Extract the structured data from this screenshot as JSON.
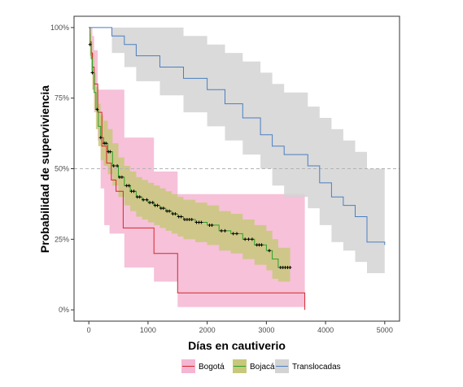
{
  "chart_data": {
    "type": "line",
    "title": "",
    "xlabel": "Días en cautiverio",
    "ylabel": "Probabilidad de superviviencia",
    "xlim": [
      -250,
      5250
    ],
    "ylim": [
      -0.04,
      1.04
    ],
    "x_ticks": [
      0,
      1000,
      2000,
      3000,
      4000,
      5000
    ],
    "x_tick_labels": [
      "0",
      "1000",
      "2000",
      "3000",
      "4000",
      "5000"
    ],
    "y_ticks": [
      0,
      0.25,
      0.5,
      0.75,
      1.0
    ],
    "y_tick_labels": [
      "0%",
      "25%",
      "50%",
      "75%",
      "100%"
    ],
    "median_line": 0.5,
    "legend_position": "bottom",
    "series": [
      {
        "name": "Bogotá",
        "color": "#d62728",
        "fill": "#f4b6d2",
        "steps": [
          [
            0,
            1.0
          ],
          [
            20,
            0.95
          ],
          [
            40,
            0.91
          ],
          [
            60,
            0.86
          ],
          [
            90,
            0.8
          ],
          [
            150,
            0.7
          ],
          [
            220,
            0.58
          ],
          [
            300,
            0.52
          ],
          [
            380,
            0.46
          ],
          [
            460,
            0.42
          ],
          [
            580,
            0.29
          ],
          [
            1100,
            0.29
          ],
          [
            1100,
            0.2
          ],
          [
            1500,
            0.2
          ],
          [
            1500,
            0.06
          ],
          [
            3650,
            0.06
          ],
          [
            3650,
            0.0
          ]
        ],
        "lower": [
          [
            0,
            1.0
          ],
          [
            20,
            0.9
          ],
          [
            40,
            0.85
          ],
          [
            60,
            0.78
          ],
          [
            90,
            0.7
          ],
          [
            150,
            0.6
          ],
          [
            200,
            0.43
          ],
          [
            260,
            0.3
          ],
          [
            350,
            0.27
          ],
          [
            600,
            0.15
          ],
          [
            1100,
            0.1
          ],
          [
            1500,
            0.01
          ],
          [
            3650,
            0.01
          ]
        ],
        "upper": [
          [
            0,
            1.0
          ],
          [
            20,
            1.0
          ],
          [
            40,
            1.0
          ],
          [
            60,
            0.97
          ],
          [
            90,
            0.92
          ],
          [
            150,
            0.78
          ],
          [
            600,
            0.61
          ],
          [
            1100,
            0.49
          ],
          [
            1500,
            0.41
          ],
          [
            3650,
            0.41
          ]
        ]
      },
      {
        "name": "Bojacá",
        "color": "#2ca02c",
        "fill": "#c8c87a",
        "steps": [
          [
            0,
            1.0
          ],
          [
            20,
            0.94
          ],
          [
            40,
            0.89
          ],
          [
            60,
            0.84
          ],
          [
            90,
            0.77
          ],
          [
            120,
            0.71
          ],
          [
            160,
            0.65
          ],
          [
            200,
            0.61
          ],
          [
            250,
            0.59
          ],
          [
            320,
            0.56
          ],
          [
            400,
            0.51
          ],
          [
            500,
            0.47
          ],
          [
            600,
            0.44
          ],
          [
            700,
            0.42
          ],
          [
            800,
            0.4
          ],
          [
            900,
            0.39
          ],
          [
            1000,
            0.38
          ],
          [
            1100,
            0.37
          ],
          [
            1200,
            0.36
          ],
          [
            1300,
            0.35
          ],
          [
            1400,
            0.34
          ],
          [
            1500,
            0.33
          ],
          [
            1600,
            0.32
          ],
          [
            1800,
            0.31
          ],
          [
            2000,
            0.3
          ],
          [
            2200,
            0.28
          ],
          [
            2400,
            0.27
          ],
          [
            2600,
            0.25
          ],
          [
            2800,
            0.23
          ],
          [
            3000,
            0.21
          ],
          [
            3100,
            0.18
          ],
          [
            3200,
            0.15
          ],
          [
            3400,
            0.15
          ]
        ],
        "lower": [
          [
            0,
            1.0
          ],
          [
            20,
            0.9
          ],
          [
            40,
            0.84
          ],
          [
            60,
            0.78
          ],
          [
            90,
            0.71
          ],
          [
            120,
            0.64
          ],
          [
            160,
            0.58
          ],
          [
            200,
            0.53
          ],
          [
            250,
            0.51
          ],
          [
            320,
            0.48
          ],
          [
            400,
            0.44
          ],
          [
            500,
            0.4
          ],
          [
            600,
            0.37
          ],
          [
            700,
            0.35
          ],
          [
            800,
            0.33
          ],
          [
            900,
            0.32
          ],
          [
            1000,
            0.31
          ],
          [
            1100,
            0.3
          ],
          [
            1200,
            0.29
          ],
          [
            1300,
            0.28
          ],
          [
            1400,
            0.27
          ],
          [
            1500,
            0.26
          ],
          [
            1600,
            0.25
          ],
          [
            1800,
            0.24
          ],
          [
            2000,
            0.23
          ],
          [
            2200,
            0.21
          ],
          [
            2400,
            0.2
          ],
          [
            2600,
            0.18
          ],
          [
            2800,
            0.16
          ],
          [
            3000,
            0.14
          ],
          [
            3100,
            0.11
          ],
          [
            3200,
            0.1
          ],
          [
            3400,
            0.1
          ]
        ],
        "upper": [
          [
            0,
            1.0
          ],
          [
            20,
            0.98
          ],
          [
            40,
            0.95
          ],
          [
            60,
            0.91
          ],
          [
            90,
            0.84
          ],
          [
            120,
            0.79
          ],
          [
            160,
            0.73
          ],
          [
            200,
            0.69
          ],
          [
            250,
            0.67
          ],
          [
            320,
            0.64
          ],
          [
            400,
            0.59
          ],
          [
            500,
            0.54
          ],
          [
            600,
            0.51
          ],
          [
            700,
            0.49
          ],
          [
            800,
            0.47
          ],
          [
            900,
            0.46
          ],
          [
            1000,
            0.45
          ],
          [
            1100,
            0.44
          ],
          [
            1200,
            0.43
          ],
          [
            1300,
            0.42
          ],
          [
            1400,
            0.41
          ],
          [
            1500,
            0.4
          ],
          [
            1600,
            0.39
          ],
          [
            1800,
            0.38
          ],
          [
            2000,
            0.37
          ],
          [
            2200,
            0.35
          ],
          [
            2400,
            0.34
          ],
          [
            2600,
            0.32
          ],
          [
            2800,
            0.3
          ],
          [
            3000,
            0.28
          ],
          [
            3100,
            0.25
          ],
          [
            3200,
            0.22
          ],
          [
            3400,
            0.22
          ]
        ],
        "censored": [
          [
            20,
            0.94
          ],
          [
            60,
            0.84
          ],
          [
            140,
            0.71
          ],
          [
            200,
            0.61
          ],
          [
            260,
            0.59
          ],
          [
            290,
            0.59
          ],
          [
            330,
            0.56
          ],
          [
            360,
            0.56
          ],
          [
            420,
            0.51
          ],
          [
            480,
            0.51
          ],
          [
            520,
            0.47
          ],
          [
            560,
            0.47
          ],
          [
            640,
            0.44
          ],
          [
            680,
            0.44
          ],
          [
            720,
            0.42
          ],
          [
            760,
            0.42
          ],
          [
            820,
            0.4
          ],
          [
            860,
            0.4
          ],
          [
            920,
            0.39
          ],
          [
            980,
            0.39
          ],
          [
            1030,
            0.38
          ],
          [
            1080,
            0.38
          ],
          [
            1120,
            0.37
          ],
          [
            1160,
            0.37
          ],
          [
            1220,
            0.36
          ],
          [
            1260,
            0.36
          ],
          [
            1320,
            0.35
          ],
          [
            1360,
            0.35
          ],
          [
            1420,
            0.34
          ],
          [
            1460,
            0.34
          ],
          [
            1520,
            0.33
          ],
          [
            1560,
            0.33
          ],
          [
            1620,
            0.32
          ],
          [
            1660,
            0.32
          ],
          [
            1700,
            0.32
          ],
          [
            1740,
            0.32
          ],
          [
            1820,
            0.31
          ],
          [
            1860,
            0.31
          ],
          [
            1900,
            0.31
          ],
          [
            2040,
            0.3
          ],
          [
            2080,
            0.3
          ],
          [
            2240,
            0.28
          ],
          [
            2300,
            0.28
          ],
          [
            2440,
            0.27
          ],
          [
            2500,
            0.27
          ],
          [
            2640,
            0.25
          ],
          [
            2700,
            0.25
          ],
          [
            2760,
            0.25
          ],
          [
            2840,
            0.23
          ],
          [
            2880,
            0.23
          ],
          [
            2920,
            0.23
          ],
          [
            3050,
            0.21
          ],
          [
            3240,
            0.15
          ],
          [
            3280,
            0.15
          ],
          [
            3320,
            0.15
          ],
          [
            3360,
            0.15
          ],
          [
            3400,
            0.15
          ]
        ]
      },
      {
        "name": "Translocadas",
        "color": "#4a7fc1",
        "fill": "#d3d3d3",
        "steps": [
          [
            0,
            1.0
          ],
          [
            390,
            1.0
          ],
          [
            390,
            0.97
          ],
          [
            600,
            0.97
          ],
          [
            600,
            0.94
          ],
          [
            800,
            0.94
          ],
          [
            800,
            0.9
          ],
          [
            1200,
            0.9
          ],
          [
            1200,
            0.86
          ],
          [
            1600,
            0.86
          ],
          [
            1600,
            0.82
          ],
          [
            2000,
            0.82
          ],
          [
            2000,
            0.78
          ],
          [
            2300,
            0.78
          ],
          [
            2300,
            0.73
          ],
          [
            2600,
            0.73
          ],
          [
            2600,
            0.68
          ],
          [
            2900,
            0.68
          ],
          [
            2900,
            0.62
          ],
          [
            3100,
            0.62
          ],
          [
            3100,
            0.58
          ],
          [
            3300,
            0.58
          ],
          [
            3300,
            0.55
          ],
          [
            3700,
            0.55
          ],
          [
            3700,
            0.51
          ],
          [
            3900,
            0.51
          ],
          [
            3900,
            0.45
          ],
          [
            4100,
            0.45
          ],
          [
            4100,
            0.4
          ],
          [
            4300,
            0.4
          ],
          [
            4300,
            0.37
          ],
          [
            4500,
            0.37
          ],
          [
            4500,
            0.33
          ],
          [
            4700,
            0.33
          ],
          [
            4700,
            0.24
          ],
          [
            5000,
            0.24
          ],
          [
            5000,
            0.23
          ]
        ],
        "lower": [
          [
            0,
            1.0
          ],
          [
            390,
            0.91
          ],
          [
            600,
            0.86
          ],
          [
            800,
            0.81
          ],
          [
            1200,
            0.76
          ],
          [
            1600,
            0.7
          ],
          [
            2000,
            0.65
          ],
          [
            2300,
            0.6
          ],
          [
            2600,
            0.55
          ],
          [
            2900,
            0.5
          ],
          [
            3100,
            0.44
          ],
          [
            3300,
            0.4
          ],
          [
            3700,
            0.36
          ],
          [
            3900,
            0.3
          ],
          [
            4100,
            0.24
          ],
          [
            4300,
            0.21
          ],
          [
            4500,
            0.17
          ],
          [
            4700,
            0.13
          ],
          [
            5000,
            0.13
          ]
        ],
        "upper": [
          [
            0,
            1.0
          ],
          [
            390,
            1.0
          ],
          [
            1200,
            1.0
          ],
          [
            1600,
            0.97
          ],
          [
            2000,
            0.94
          ],
          [
            2300,
            0.91
          ],
          [
            2600,
            0.88
          ],
          [
            2900,
            0.84
          ],
          [
            3100,
            0.8
          ],
          [
            3300,
            0.77
          ],
          [
            3700,
            0.72
          ],
          [
            3900,
            0.68
          ],
          [
            4100,
            0.64
          ],
          [
            4300,
            0.6
          ],
          [
            4500,
            0.56
          ],
          [
            4700,
            0.5
          ],
          [
            5000,
            0.5
          ]
        ]
      }
    ]
  }
}
